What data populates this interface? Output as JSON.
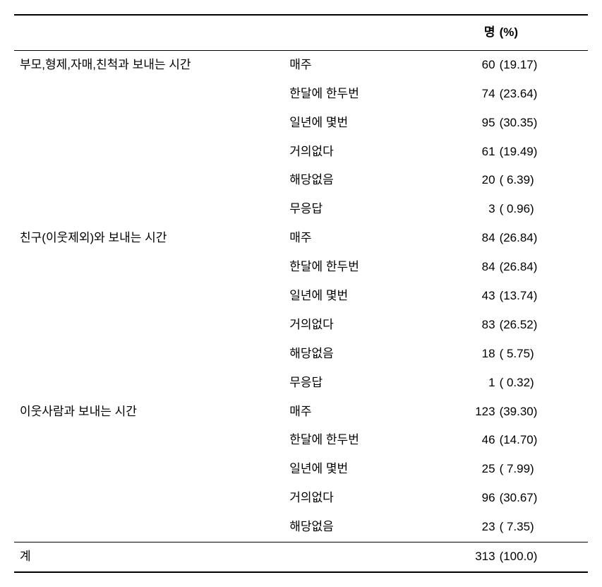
{
  "header": {
    "count_label": "명",
    "pct_label": "(%)"
  },
  "sections": [
    {
      "category": "부모,형제,자매,친척과 보내는 시간",
      "rows": [
        {
          "response": "매주",
          "count": "60",
          "pct": "(19.17)"
        },
        {
          "response": "한달에 한두번",
          "count": "74",
          "pct": "(23.64)"
        },
        {
          "response": "일년에 몇번",
          "count": "95",
          "pct": "(30.35)"
        },
        {
          "response": "거의없다",
          "count": "61",
          "pct": "(19.49)"
        },
        {
          "response": "해당없음",
          "count": "20",
          "pct": "( 6.39)"
        },
        {
          "response": "무응답",
          "count": "3",
          "pct": "( 0.96)"
        }
      ]
    },
    {
      "category": "친구(이웃제외)와 보내는 시간",
      "rows": [
        {
          "response": "매주",
          "count": "84",
          "pct": "(26.84)"
        },
        {
          "response": "한달에 한두번",
          "count": "84",
          "pct": "(26.84)"
        },
        {
          "response": "일년에 몇번",
          "count": "43",
          "pct": "(13.74)"
        },
        {
          "response": "거의없다",
          "count": "83",
          "pct": "(26.52)"
        },
        {
          "response": "해당없음",
          "count": "18",
          "pct": "( 5.75)"
        },
        {
          "response": "무응답",
          "count": "1",
          "pct": "( 0.32)"
        }
      ]
    },
    {
      "category": "이웃사람과 보내는 시간",
      "rows": [
        {
          "response": "매주",
          "count": "123",
          "pct": "(39.30)"
        },
        {
          "response": "한달에 한두번",
          "count": "46",
          "pct": "(14.70)"
        },
        {
          "response": "일년에 몇번",
          "count": "25",
          "pct": "( 7.99)"
        },
        {
          "response": "거의없다",
          "count": "96",
          "pct": "(30.67)"
        },
        {
          "response": "해당없음",
          "count": "23",
          "pct": "( 7.35)"
        }
      ]
    }
  ],
  "total": {
    "label": "계",
    "count": "313",
    "pct": "(100.0)"
  }
}
